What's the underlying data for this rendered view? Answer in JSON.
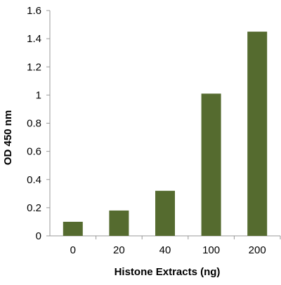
{
  "chart_data": {
    "type": "bar",
    "title": "",
    "xlabel": "Histone Extracts (ng)",
    "ylabel": "OD 450 nm",
    "categories": [
      "0",
      "20",
      "40",
      "100",
      "200"
    ],
    "values": [
      0.1,
      0.18,
      0.32,
      1.01,
      1.45
    ],
    "ylim": [
      0,
      1.6
    ],
    "yticks": [
      "0",
      "0.2",
      "0.4",
      "0.6",
      "0.8",
      "1",
      "1.2",
      "1.4",
      "1.6"
    ],
    "grid": false,
    "legend": "none",
    "bar_color": "#556b2f",
    "axis_color": "#999999"
  }
}
